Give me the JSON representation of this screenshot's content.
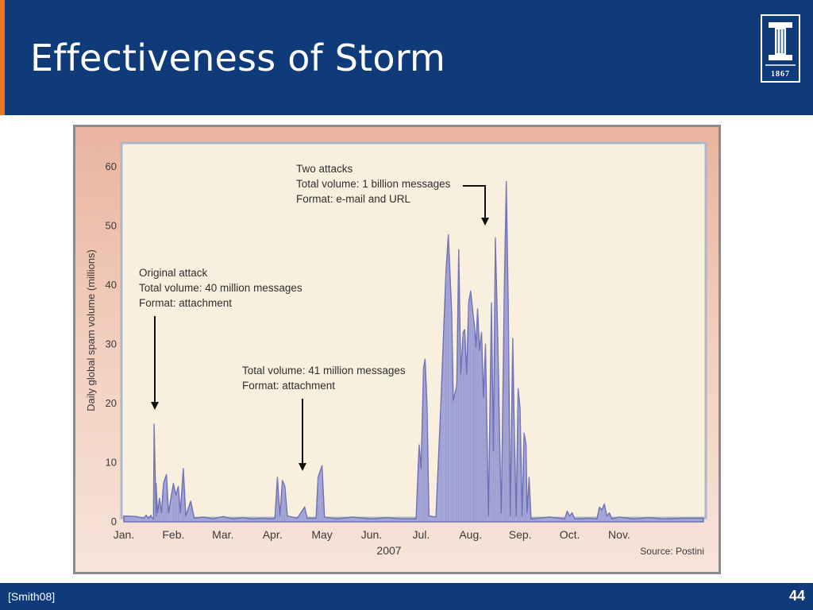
{
  "slide": {
    "title": "Effectiveness of Storm",
    "logo_year": "1867",
    "citation": "[Smith08]",
    "page_number": "44"
  },
  "colors": {
    "header": "#0f3b7a",
    "accent": "#e87722",
    "series_fill": "#a3a6d6",
    "series_line": "#6e70b4"
  },
  "chart_data": {
    "type": "area",
    "ylabel": "Daily global spam volume (millions)",
    "xlabel": "2007",
    "source": "Source: Postini",
    "ylim": [
      0,
      60
    ],
    "yticks": [
      0,
      10,
      20,
      30,
      40,
      50,
      60
    ],
    "xlim": [
      0,
      11.7
    ],
    "months": [
      {
        "label": "Jan.",
        "x": 0
      },
      {
        "label": "Feb.",
        "x": 1
      },
      {
        "label": "Mar.",
        "x": 2
      },
      {
        "label": "Apr.",
        "x": 3
      },
      {
        "label": "May",
        "x": 4
      },
      {
        "label": "Jun.",
        "x": 5
      },
      {
        "label": "Jul.",
        "x": 6
      },
      {
        "label": "Aug.",
        "x": 7
      },
      {
        "label": "Sep.",
        "x": 8
      },
      {
        "label": "Oct.",
        "x": 9
      },
      {
        "label": "Nov.",
        "x": 10
      }
    ],
    "series": [
      {
        "points": [
          [
            0,
            1.0
          ],
          [
            0.25,
            0.9
          ],
          [
            0.4,
            0.6
          ],
          [
            0.45,
            1.1
          ],
          [
            0.5,
            0.6
          ],
          [
            0.55,
            1.1
          ],
          [
            0.6,
            0.5
          ],
          [
            0.65,
            1.0
          ],
          [
            0.55,
            0.8
          ],
          [
            0.6,
            2.0
          ],
          [
            0.61,
            16.5
          ],
          [
            0.65,
            6.5
          ],
          [
            0.68,
            1.5
          ],
          [
            0.72,
            4.0
          ],
          [
            0.76,
            1.5
          ],
          [
            0.8,
            6.5
          ],
          [
            0.86,
            8.0
          ],
          [
            0.9,
            1.5
          ],
          [
            1.0,
            6.5
          ],
          [
            1.05,
            4.5
          ],
          [
            1.1,
            6.0
          ],
          [
            1.14,
            1.5
          ],
          [
            1.2,
            9.0
          ],
          [
            1.25,
            1.0
          ],
          [
            1.35,
            3.5
          ],
          [
            1.42,
            0.6
          ],
          [
            1.6,
            0.8
          ],
          [
            1.8,
            0.5
          ],
          [
            2.0,
            0.9
          ],
          [
            2.2,
            0.5
          ],
          [
            2.4,
            0.7
          ],
          [
            2.6,
            0.5
          ],
          [
            2.8,
            0.6
          ],
          [
            2.95,
            0.5
          ],
          [
            3.05,
            0.6
          ],
          [
            3.1,
            7.5
          ],
          [
            3.15,
            1.0
          ],
          [
            3.2,
            7.0
          ],
          [
            3.25,
            6.0
          ],
          [
            3.3,
            1.0
          ],
          [
            3.5,
            0.6
          ],
          [
            3.65,
            2.5
          ],
          [
            3.7,
            0.6
          ],
          [
            3.88,
            0.6
          ],
          [
            3.92,
            7.5
          ],
          [
            4.0,
            9.5
          ],
          [
            4.05,
            0.8
          ],
          [
            4.3,
            0.5
          ],
          [
            4.6,
            0.8
          ],
          [
            5.0,
            0.5
          ],
          [
            5.3,
            0.7
          ],
          [
            5.6,
            0.5
          ],
          [
            5.9,
            0.5
          ],
          [
            5.96,
            13.0
          ],
          [
            6.0,
            9.0
          ],
          [
            6.05,
            26.0
          ],
          [
            6.08,
            27.5
          ],
          [
            6.12,
            20.0
          ],
          [
            6.16,
            1.0
          ],
          [
            6.3,
            0.8
          ],
          [
            6.4,
            20.0
          ],
          [
            6.5,
            42.0
          ],
          [
            6.55,
            48.5
          ],
          [
            6.62,
            35.0
          ],
          [
            6.65,
            20.5
          ],
          [
            6.72,
            23.0
          ],
          [
            6.76,
            46.0
          ],
          [
            6.8,
            25.0
          ],
          [
            6.85,
            32.0
          ],
          [
            6.88,
            32.5
          ],
          [
            6.92,
            25.0
          ],
          [
            6.96,
            37.0
          ],
          [
            7.0,
            39.0
          ],
          [
            7.05,
            35.0
          ],
          [
            7.08,
            33.0
          ],
          [
            7.11,
            29.5
          ],
          [
            7.14,
            36.0
          ],
          [
            7.18,
            29.0
          ],
          [
            7.22,
            32.0
          ],
          [
            7.26,
            21.0
          ],
          [
            7.3,
            30.0
          ],
          [
            7.36,
            1.0
          ],
          [
            7.42,
            37.0
          ],
          [
            7.46,
            12.0
          ],
          [
            7.5,
            48.0
          ],
          [
            7.55,
            30.0
          ],
          [
            7.6,
            8.0
          ],
          [
            7.62,
            1.5
          ],
          [
            7.68,
            39.0
          ],
          [
            7.72,
            57.5
          ],
          [
            7.76,
            36.0
          ],
          [
            7.8,
            1.0
          ],
          [
            7.85,
            31.0
          ],
          [
            7.88,
            16.0
          ],
          [
            7.92,
            1.0
          ],
          [
            7.96,
            22.5
          ],
          [
            8.0,
            19.0
          ],
          [
            8.04,
            1.0
          ],
          [
            8.08,
            15.0
          ],
          [
            8.12,
            13.0
          ],
          [
            8.14,
            1.5
          ],
          [
            8.18,
            7.5
          ],
          [
            8.22,
            0.5
          ],
          [
            8.6,
            0.8
          ],
          [
            8.9,
            0.5
          ],
          [
            8.95,
            1.8
          ],
          [
            9.0,
            1.0
          ],
          [
            9.05,
            1.5
          ],
          [
            9.1,
            0.5
          ],
          [
            9.4,
            0.6
          ],
          [
            9.55,
            0.5
          ],
          [
            9.6,
            2.5
          ],
          [
            9.65,
            2.0
          ],
          [
            9.7,
            3.0
          ],
          [
            9.75,
            1.0
          ],
          [
            9.8,
            1.5
          ],
          [
            9.85,
            0.5
          ],
          [
            10.0,
            0.8
          ],
          [
            10.3,
            0.5
          ],
          [
            10.6,
            0.7
          ],
          [
            10.9,
            0.5
          ],
          [
            11.3,
            0.6
          ],
          [
            11.7,
            0.6
          ]
        ]
      }
    ],
    "annotations": [
      {
        "lines": [
          "Two attacks",
          "Total volume: 1 billion messages",
          "Format: e-mail and URL"
        ],
        "arrow_at": [
          6.8,
          50
        ]
      },
      {
        "lines": [
          "Original attack",
          "Total volume: 40 million messages",
          "Format: attachment"
        ],
        "arrow_at": [
          0.61,
          18
        ]
      },
      {
        "lines": [
          "Total volume: 41 million messages",
          "Format: attachment"
        ],
        "arrow_at": [
          3.35,
          8.5
        ]
      }
    ]
  }
}
